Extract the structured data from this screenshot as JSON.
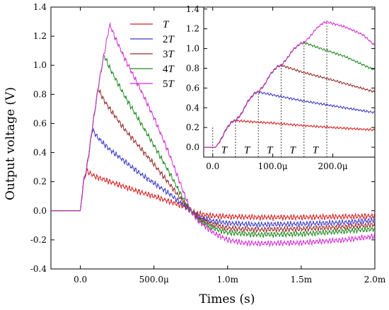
{
  "chart_data": [
    {
      "type": "line",
      "xlabel": "Times (s)",
      "ylabel": "Output voltage (V)",
      "xlim": [
        -0.0002,
        0.002
      ],
      "ylim": [
        -0.4,
        1.4
      ],
      "x_ticks": [
        0,
        0.0005,
        0.001,
        0.0015,
        0.002
      ],
      "x_tick_labels": [
        "0.0",
        "500.0μ",
        "1.0m",
        "1.5m",
        "2.0m"
      ],
      "y_ticks": [
        -0.4,
        -0.2,
        0.0,
        0.2,
        0.4,
        0.6,
        0.8,
        1.0,
        1.2,
        1.4
      ],
      "y_tick_labels": [
        "-0.4",
        "-0.2",
        "0.0",
        "0.2",
        "0.4",
        "0.6",
        "0.8",
        "1.0",
        "1.2",
        "1.4"
      ],
      "legend_position": "top-right",
      "series": [
        {
          "name": "T",
          "name_prefix": "",
          "name_italic": "T",
          "color": "#d62020",
          "points": [
            [
              -0.0002,
              0.0
            ],
            [
              0.0,
              0.0
            ],
            [
              2e-05,
              0.19
            ],
            [
              4e-05,
              0.275
            ],
            [
              0.0001,
              0.235
            ],
            [
              0.0002,
              0.2
            ],
            [
              0.0003,
              0.165
            ],
            [
              0.0004,
              0.13
            ],
            [
              0.0005,
              0.1
            ],
            [
              0.0006,
              0.065
            ],
            [
              0.0007,
              0.03
            ],
            [
              0.00075,
              0.0
            ],
            [
              0.0008,
              -0.02
            ],
            [
              0.0009,
              -0.035
            ],
            [
              0.001,
              -0.04
            ],
            [
              0.0012,
              -0.045
            ],
            [
              0.0015,
              -0.045
            ],
            [
              0.0018,
              -0.04
            ],
            [
              0.002,
              -0.035
            ]
          ]
        },
        {
          "name": "2T",
          "name_prefix": "2",
          "name_italic": "T",
          "color": "#3a3ac8",
          "points": [
            [
              -0.0002,
              0.0
            ],
            [
              0.0,
              0.0
            ],
            [
              2e-05,
              0.19
            ],
            [
              4e-05,
              0.275
            ],
            [
              6e-05,
              0.41
            ],
            [
              8e-05,
              0.56
            ],
            [
              0.00012,
              0.5
            ],
            [
              0.0002,
              0.42
            ],
            [
              0.0003,
              0.34
            ],
            [
              0.0004,
              0.26
            ],
            [
              0.0005,
              0.19
            ],
            [
              0.0006,
              0.12
            ],
            [
              0.0007,
              0.04
            ],
            [
              0.00075,
              0.0
            ],
            [
              0.0008,
              -0.04
            ],
            [
              0.0009,
              -0.07
            ],
            [
              0.001,
              -0.085
            ],
            [
              0.0012,
              -0.095
            ],
            [
              0.0015,
              -0.09
            ],
            [
              0.0018,
              -0.08
            ],
            [
              0.002,
              -0.065
            ]
          ]
        },
        {
          "name": "3T",
          "name_prefix": "3",
          "name_italic": "T",
          "color": "#9a2a2a",
          "points": [
            [
              -0.0002,
              0.0
            ],
            [
              0.0,
              0.0
            ],
            [
              2e-05,
              0.19
            ],
            [
              4e-05,
              0.275
            ],
            [
              6e-05,
              0.41
            ],
            [
              8e-05,
              0.56
            ],
            [
              0.0001,
              0.7
            ],
            [
              0.00012,
              0.84
            ],
            [
              0.00016,
              0.76
            ],
            [
              0.0002,
              0.7
            ],
            [
              0.0003,
              0.56
            ],
            [
              0.0004,
              0.44
            ],
            [
              0.0005,
              0.32
            ],
            [
              0.0006,
              0.19
            ],
            [
              0.0007,
              0.06
            ],
            [
              0.00075,
              0.0
            ],
            [
              0.0008,
              -0.05
            ],
            [
              0.0009,
              -0.095
            ],
            [
              0.001,
              -0.12
            ],
            [
              0.0012,
              -0.13
            ],
            [
              0.0015,
              -0.125
            ],
            [
              0.0018,
              -0.11
            ],
            [
              0.002,
              -0.095
            ]
          ]
        },
        {
          "name": "4T",
          "name_prefix": "4",
          "name_italic": "T",
          "color": "#1e8a1e",
          "points": [
            [
              -0.0002,
              0.0
            ],
            [
              0.0,
              0.0
            ],
            [
              2e-05,
              0.19
            ],
            [
              4e-05,
              0.275
            ],
            [
              6e-05,
              0.41
            ],
            [
              8e-05,
              0.56
            ],
            [
              0.0001,
              0.7
            ],
            [
              0.00012,
              0.84
            ],
            [
              0.00014,
              0.96
            ],
            [
              0.00016,
              1.07
            ],
            [
              0.0002,
              0.98
            ],
            [
              0.0003,
              0.79
            ],
            [
              0.0004,
              0.62
            ],
            [
              0.0005,
              0.45
            ],
            [
              0.0006,
              0.27
            ],
            [
              0.0007,
              0.08
            ],
            [
              0.00075,
              0.0
            ],
            [
              0.0008,
              -0.06
            ],
            [
              0.0009,
              -0.12
            ],
            [
              0.001,
              -0.15
            ],
            [
              0.0012,
              -0.165
            ],
            [
              0.0015,
              -0.16
            ],
            [
              0.0018,
              -0.14
            ],
            [
              0.002,
              -0.125
            ]
          ]
        },
        {
          "name": "5T",
          "name_prefix": "5",
          "name_italic": "T",
          "color": "#d42bd4",
          "points": [
            [
              -0.0002,
              0.0
            ],
            [
              0.0,
              0.0
            ],
            [
              2e-05,
              0.19
            ],
            [
              4e-05,
              0.275
            ],
            [
              6e-05,
              0.41
            ],
            [
              8e-05,
              0.56
            ],
            [
              0.0001,
              0.7
            ],
            [
              0.00012,
              0.84
            ],
            [
              0.00014,
              0.96
            ],
            [
              0.00016,
              1.07
            ],
            [
              0.00018,
              1.18
            ],
            [
              0.0002,
              1.28
            ],
            [
              0.00024,
              1.18
            ],
            [
              0.0003,
              1.05
            ],
            [
              0.0004,
              0.85
            ],
            [
              0.0005,
              0.64
            ],
            [
              0.0006,
              0.4
            ],
            [
              0.0007,
              0.13
            ],
            [
              0.00075,
              0.0
            ],
            [
              0.0008,
              -0.07
            ],
            [
              0.0009,
              -0.15
            ],
            [
              0.001,
              -0.2
            ],
            [
              0.0011,
              -0.22
            ],
            [
              0.0012,
              -0.225
            ],
            [
              0.0015,
              -0.22
            ],
            [
              0.0018,
              -0.2
            ],
            [
              0.002,
              -0.175
            ]
          ]
        }
      ]
    },
    {
      "type": "line",
      "role": "inset",
      "xlim": [
        -1.5e-05,
        0.00027
      ],
      "ylim": [
        -0.1,
        1.42
      ],
      "x_ticks": [
        0,
        0.0001,
        0.0002
      ],
      "x_tick_labels": [
        "0.0",
        "100.0μ",
        "200.0μ"
      ],
      "y_ticks": [
        0.0,
        0.2,
        0.4,
        0.6,
        0.8,
        1.0,
        1.2,
        1.4
      ],
      "y_tick_labels": [
        "0.0",
        "0.2",
        "0.4",
        "0.6",
        "0.8",
        "1.0",
        "1.2",
        "1.4"
      ],
      "pulse_markers_x": [
        0,
        3.8e-05,
        7.6e-05,
        0.000114,
        0.000152,
        0.00019
      ],
      "pulse_label": "T",
      "pulse_label_count": 5,
      "series": [
        {
          "color": "#d62020",
          "points": [
            [
              -1.5e-05,
              0.0
            ],
            [
              5e-06,
              0.0
            ],
            [
              1.5e-05,
              0.09
            ],
            [
              2.2e-05,
              0.18
            ],
            [
              3.2e-05,
              0.26
            ],
            [
              3.8e-05,
              0.27
            ],
            [
              6e-05,
              0.26
            ],
            [
              0.0001,
              0.245
            ],
            [
              0.00015,
              0.22
            ],
            [
              0.0002,
              0.2
            ],
            [
              0.00027,
              0.175
            ]
          ]
        },
        {
          "color": "#3a3ac8",
          "points": [
            [
              -1.5e-05,
              0.0
            ],
            [
              5e-06,
              0.0
            ],
            [
              1.5e-05,
              0.09
            ],
            [
              2.2e-05,
              0.18
            ],
            [
              3.2e-05,
              0.26
            ],
            [
              3.8e-05,
              0.27
            ],
            [
              4.8e-05,
              0.34
            ],
            [
              5.8e-05,
              0.46
            ],
            [
              7e-05,
              0.55
            ],
            [
              7.6e-05,
              0.56
            ],
            [
              0.0001,
              0.53
            ],
            [
              0.00015,
              0.47
            ],
            [
              0.0002,
              0.42
            ],
            [
              0.00027,
              0.35
            ]
          ]
        },
        {
          "color": "#9a2a2a",
          "points": [
            [
              -1.5e-05,
              0.0
            ],
            [
              5e-06,
              0.0
            ],
            [
              1.5e-05,
              0.09
            ],
            [
              2.2e-05,
              0.18
            ],
            [
              3.2e-05,
              0.26
            ],
            [
              3.8e-05,
              0.27
            ],
            [
              4.8e-05,
              0.34
            ],
            [
              5.8e-05,
              0.46
            ],
            [
              7e-05,
              0.55
            ],
            [
              7.6e-05,
              0.56
            ],
            [
              8.6e-05,
              0.63
            ],
            [
              9.6e-05,
              0.74
            ],
            [
              0.000108,
              0.82
            ],
            [
              0.000114,
              0.83
            ],
            [
              0.00015,
              0.76
            ],
            [
              0.0002,
              0.68
            ],
            [
              0.00027,
              0.56
            ]
          ]
        },
        {
          "color": "#1e8a1e",
          "points": [
            [
              -1.5e-05,
              0.0
            ],
            [
              5e-06,
              0.0
            ],
            [
              1.5e-05,
              0.09
            ],
            [
              2.2e-05,
              0.18
            ],
            [
              3.2e-05,
              0.26
            ],
            [
              3.8e-05,
              0.27
            ],
            [
              4.8e-05,
              0.34
            ],
            [
              5.8e-05,
              0.46
            ],
            [
              7e-05,
              0.55
            ],
            [
              7.6e-05,
              0.56
            ],
            [
              8.6e-05,
              0.63
            ],
            [
              9.6e-05,
              0.74
            ],
            [
              0.000108,
              0.82
            ],
            [
              0.000114,
              0.83
            ],
            [
              0.000124,
              0.9
            ],
            [
              0.000134,
              0.99
            ],
            [
              0.000146,
              1.05
            ],
            [
              0.000152,
              1.06
            ],
            [
              0.00018,
              1.0
            ],
            [
              0.00022,
              0.92
            ],
            [
              0.00027,
              0.78
            ]
          ]
        },
        {
          "color": "#d42bd4",
          "points": [
            [
              -1.5e-05,
              0.0
            ],
            [
              5e-06,
              0.0
            ],
            [
              1.5e-05,
              0.09
            ],
            [
              2.2e-05,
              0.18
            ],
            [
              3.2e-05,
              0.26
            ],
            [
              3.8e-05,
              0.27
            ],
            [
              4.8e-05,
              0.34
            ],
            [
              5.8e-05,
              0.46
            ],
            [
              7e-05,
              0.55
            ],
            [
              7.6e-05,
              0.56
            ],
            [
              8.6e-05,
              0.63
            ],
            [
              9.6e-05,
              0.74
            ],
            [
              0.000108,
              0.82
            ],
            [
              0.000114,
              0.83
            ],
            [
              0.000124,
              0.9
            ],
            [
              0.000134,
              0.99
            ],
            [
              0.000146,
              1.05
            ],
            [
              0.000152,
              1.06
            ],
            [
              0.000162,
              1.12
            ],
            [
              0.000172,
              1.2
            ],
            [
              0.000184,
              1.26
            ],
            [
              0.00019,
              1.27
            ],
            [
              0.00022,
              1.22
            ],
            [
              0.00025,
              1.14
            ],
            [
              0.00027,
              1.03
            ]
          ]
        }
      ]
    }
  ]
}
